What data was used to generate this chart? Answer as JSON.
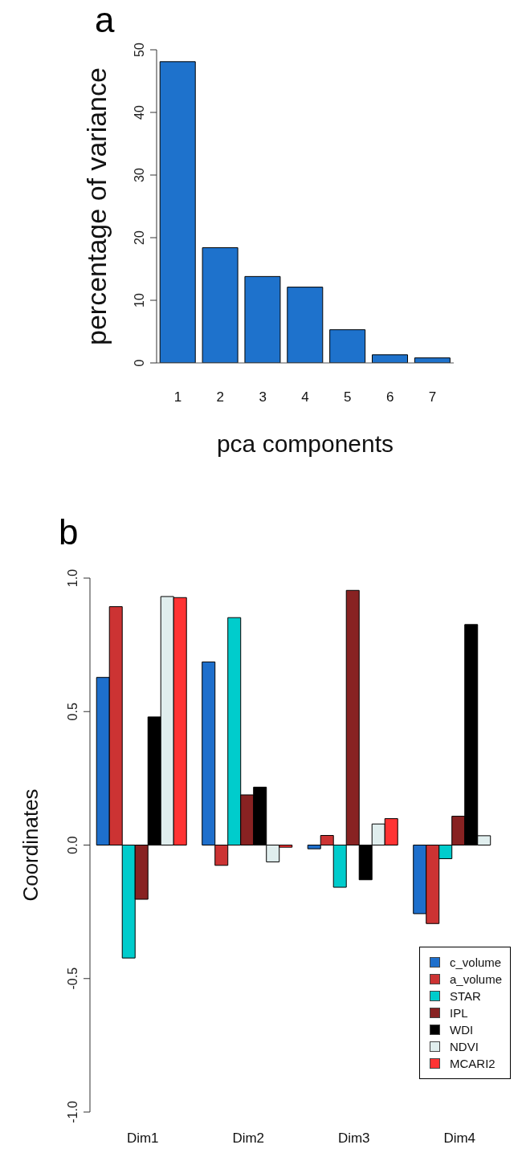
{
  "chart_data": [
    {
      "type": "bar",
      "annotations": [
        "a"
      ],
      "xlabel": "pca components",
      "ylabel": "percentage of variance",
      "categories": [
        "1",
        "2",
        "3",
        "4",
        "5",
        "6",
        "7"
      ],
      "values": [
        48.1,
        18.4,
        13.8,
        12.1,
        5.3,
        1.3,
        0.8
      ],
      "color": "#1e72cc",
      "ylim": [
        0,
        50
      ],
      "yticks": [
        0,
        10,
        20,
        30,
        40,
        50
      ],
      "grid": false
    },
    {
      "type": "bar",
      "annotations": [
        "b"
      ],
      "ylabel": "Coordinates",
      "categories": [
        "Dim1",
        "Dim2",
        "Dim3",
        "Dim4"
      ],
      "ylim": [
        -1,
        1
      ],
      "yticks": [
        {
          "value": -1,
          "label": "-1.0"
        },
        {
          "value": -0.5,
          "label": "-0.5"
        },
        {
          "value": 0,
          "label": "0.0"
        },
        {
          "value": 0.5,
          "label": "0.5"
        },
        {
          "value": 1,
          "label": "1.0"
        }
      ],
      "grid": false,
      "legend": "bottom right",
      "series": [
        {
          "name": "c_volume",
          "color": "#1e6fcc",
          "values": [
            0.628,
            0.686,
            -0.014,
            -0.257
          ]
        },
        {
          "name": "a_volume",
          "color": "#cc3333",
          "values": [
            0.893,
            -0.076,
            0.036,
            -0.294
          ]
        },
        {
          "name": "STAR",
          "color": "#00cccc",
          "values": [
            -0.423,
            0.852,
            -0.158,
            -0.051
          ]
        },
        {
          "name": "IPL",
          "color": "#882222",
          "values": [
            -0.203,
            0.188,
            0.954,
            0.108
          ]
        },
        {
          "name": "WDI",
          "color": "#000000",
          "values": [
            0.48,
            0.217,
            -0.13,
            0.826
          ]
        },
        {
          "name": "NDVI",
          "color": "#e0eeee",
          "values": [
            0.931,
            -0.063,
            0.079,
            0.035
          ]
        },
        {
          "name": "MCARI2",
          "color": "#ff3333",
          "values": [
            0.927,
            -0.008,
            0.099,
            null
          ]
        }
      ]
    }
  ]
}
